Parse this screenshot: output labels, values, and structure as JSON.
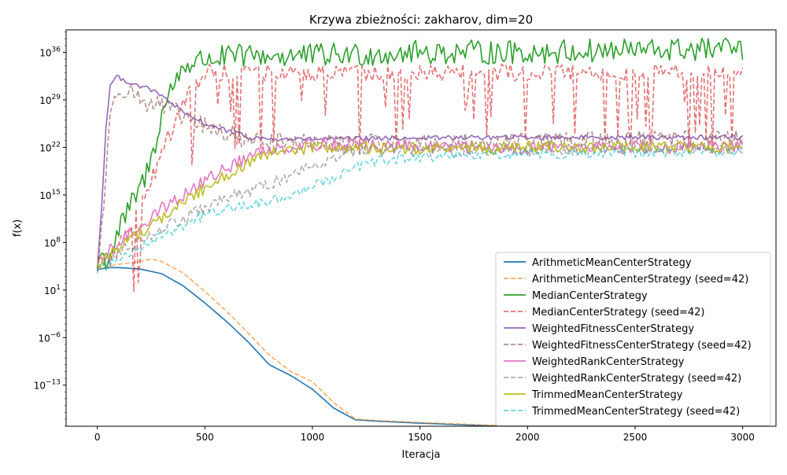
{
  "chart_data": {
    "type": "line",
    "title": "Krzywa zbieżności: zakharov, dim=20",
    "xlabel": "Iteracja",
    "ylabel": "f(x)",
    "xlim": [
      -145,
      3155
    ],
    "ylim_log10": [
      -19.05,
      39.3
    ],
    "yscale": "log",
    "grid": false,
    "legend_position": "lower-right",
    "xticks": [
      0,
      500,
      1000,
      1500,
      2000,
      2500,
      3000
    ],
    "xtick_labels": [
      "0",
      "500",
      "1000",
      "1500",
      "2000",
      "2500",
      "3000"
    ],
    "yticks_log10": [
      -13,
      -6,
      1,
      8,
      15,
      22,
      29,
      36
    ],
    "ytick_labels": {
      "base": [
        "10",
        "10",
        "10",
        "10",
        "10",
        "10",
        "10",
        "10"
      ],
      "exp": [
        "−13",
        "−6",
        "1",
        "8",
        "15",
        "22",
        "29",
        "36"
      ]
    },
    "series": [
      {
        "name": "ArithmeticMeanCenterStrategy",
        "color": "#1f77b4",
        "dash": "solid",
        "noise": 0,
        "x": [
          0,
          50,
          100,
          200,
          300,
          400,
          500,
          600,
          700,
          800,
          900,
          1000,
          1100,
          1200,
          1300,
          1500,
          2000,
          2500,
          3000
        ],
        "y_log10": [
          4,
          4.3,
          4.3,
          4.1,
          3.4,
          1.6,
          -0.9,
          -3.6,
          -6.6,
          -10,
          -11.6,
          -13.6,
          -16.4,
          -18.1,
          -18.3,
          -18.6,
          -19.2,
          -19.6,
          -19.8
        ]
      },
      {
        "name": "ArithmeticMeanCenterStrategy (seed=42)",
        "color": "#ff7f0e",
        "dash": "dashed",
        "noise": 0,
        "x": [
          0,
          50,
          100,
          200,
          250,
          300,
          400,
          500,
          600,
          700,
          800,
          900,
          1000,
          1100,
          1200,
          1300,
          1500,
          2000,
          2500,
          3000
        ],
        "y_log10": [
          4,
          4.5,
          4.8,
          5.2,
          5.6,
          5.2,
          3.5,
          0.8,
          -2.1,
          -5.3,
          -8.6,
          -11,
          -12.5,
          -15.6,
          -18,
          -18.2,
          -18.5,
          -19.1,
          -19.5,
          -19.7
        ]
      },
      {
        "name": "MedianCenterStrategy",
        "color": "#2ca02c",
        "dash": "solid",
        "noise": 1.8,
        "x": [
          0,
          50,
          100,
          150,
          200,
          250,
          300,
          350,
          400,
          500,
          700,
          1000,
          1500,
          2000,
          2500,
          3000
        ],
        "y_log10": [
          6,
          5.5,
          9.8,
          13,
          16,
          20,
          27,
          31,
          34,
          35,
          35.5,
          35.5,
          36,
          36,
          36.3,
          36.5
        ]
      },
      {
        "name": "MedianCenterStrategy (seed=42)",
        "color": "#d62728",
        "dash": "dashed",
        "noise": 4,
        "x": [
          0,
          50,
          100,
          150,
          200,
          250,
          300,
          350,
          400,
          500,
          700,
          1000,
          1500,
          2000,
          2500,
          3000
        ],
        "y_log10": [
          5,
          4.8,
          7.2,
          11,
          13,
          17,
          21,
          25,
          29,
          33,
          33,
          33,
          33,
          33,
          33,
          33
        ]
      },
      {
        "name": "WeightedFitnessCenterStrategy",
        "color": "#9467bd",
        "dash": "solid",
        "noise": 0.35,
        "x": [
          0,
          20,
          40,
          60,
          80,
          100,
          150,
          200,
          250,
          300,
          350,
          400,
          500,
          600,
          700,
          800,
          1000,
          1500,
          2000,
          2500,
          3000
        ],
        "y_log10": [
          4,
          13,
          25,
          31,
          32.2,
          32.3,
          31.6,
          31,
          30.5,
          29.5,
          28.5,
          27,
          25.5,
          24.5,
          23.5,
          23.2,
          23.2,
          23.4,
          23.5,
          23.5,
          23.5
        ]
      },
      {
        "name": "WeightedFitnessCenterStrategy (seed=42)",
        "color": "#8c564b",
        "dash": "dashed",
        "noise": 1.5,
        "x": [
          0,
          30,
          60,
          80,
          100,
          150,
          200,
          300,
          400,
          500,
          600,
          700,
          800,
          1000,
          1500,
          2000,
          2500,
          3000
        ],
        "y_log10": [
          4,
          14,
          26,
          30,
          31,
          30.5,
          29,
          28,
          26.5,
          25,
          24,
          23.3,
          22.8,
          22.5,
          22.5,
          22.8,
          23,
          23
        ]
      },
      {
        "name": "WeightedRankCenterStrategy",
        "color": "#e377c2",
        "dash": "solid",
        "noise": 1,
        "x": [
          0,
          100,
          200,
          300,
          400,
          500,
          600,
          700,
          800,
          1000,
          1500,
          2000,
          2500,
          3000
        ],
        "y_log10": [
          5,
          8,
          10.5,
          13,
          15,
          17,
          19,
          20.5,
          21.8,
          22.5,
          22,
          22,
          22,
          22
        ]
      },
      {
        "name": "WeightedRankCenterStrategy (seed=42)",
        "color": "#7f7f7f",
        "dash": "dashed",
        "noise": 0.9,
        "x": [
          0,
          100,
          200,
          300,
          400,
          500,
          600,
          700,
          800,
          900,
          1000,
          1100,
          1200,
          1500,
          2000,
          2500,
          3000
        ],
        "y_log10": [
          4.5,
          6.5,
          8.5,
          10,
          11.5,
          13,
          14.5,
          15.5,
          16.5,
          18,
          19.5,
          20.5,
          21.5,
          21.5,
          21.5,
          22,
          21.8
        ]
      },
      {
        "name": "TrimmedMeanCenterStrategy",
        "color": "#bcbd22",
        "dash": "solid",
        "noise": 0.9,
        "x": [
          0,
          100,
          200,
          300,
          400,
          500,
          600,
          700,
          800,
          1000,
          1500,
          2000,
          2500,
          3000
        ],
        "y_log10": [
          4.5,
          7.5,
          9.5,
          11.5,
          14,
          16,
          18,
          19.5,
          21,
          22,
          21.8,
          22,
          22,
          22
        ]
      },
      {
        "name": "TrimmedMeanCenterStrategy (seed=42)",
        "color": "#17becf",
        "dash": "dashed",
        "noise": 0.7,
        "x": [
          0,
          100,
          200,
          300,
          400,
          500,
          600,
          700,
          800,
          900,
          1000,
          1100,
          1200,
          1300,
          1500,
          2000,
          2500,
          3000
        ],
        "y_log10": [
          4,
          5.5,
          7.5,
          9,
          10.5,
          12,
          13,
          13.5,
          14,
          15,
          16.5,
          17.5,
          19,
          20,
          20.5,
          21,
          21.2,
          21.3
        ]
      }
    ]
  }
}
